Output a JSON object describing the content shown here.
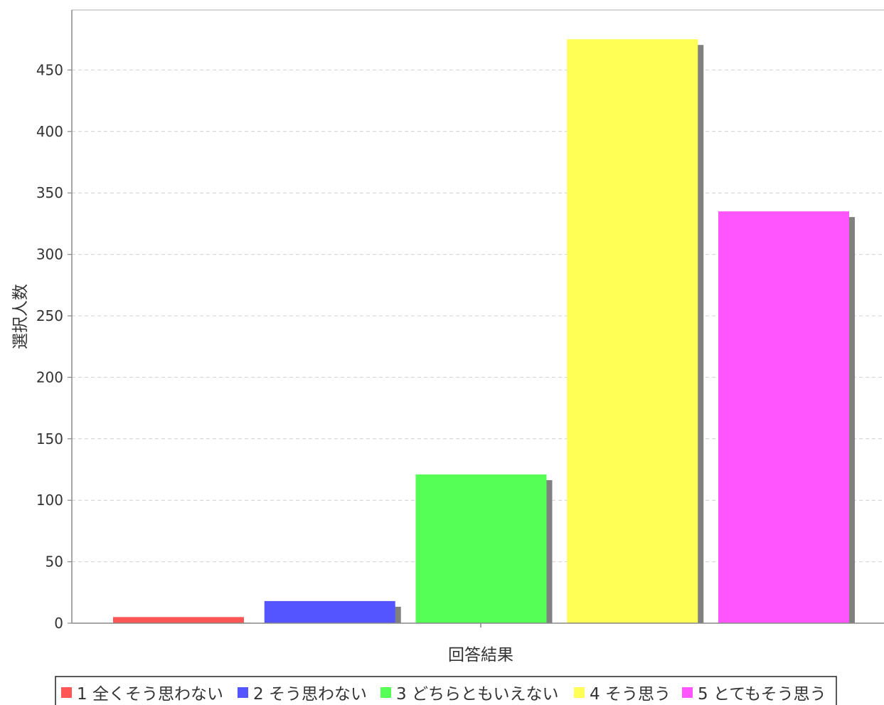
{
  "chart_data": {
    "type": "bar",
    "title": "",
    "xlabel": "回答結果",
    "ylabel": "選択人数",
    "ylim": [
      0,
      475
    ],
    "y_ticks": [
      0,
      50,
      100,
      150,
      200,
      250,
      300,
      350,
      400,
      450
    ],
    "grid": true,
    "legend_placement": "bottom",
    "series": [
      {
        "name": "1 全くそう思わない",
        "value": 5,
        "color": "#ff5555"
      },
      {
        "name": "2 そう思わない",
        "value": 18,
        "color": "#5555ff"
      },
      {
        "name": "3 どちらともいえない",
        "value": 121,
        "color": "#55ff55"
      },
      {
        "name": "4 そう思う",
        "value": 475,
        "color": "#ffff55"
      },
      {
        "name": "5 とてもそう思う",
        "value": 335,
        "color": "#ff55ff"
      }
    ]
  }
}
